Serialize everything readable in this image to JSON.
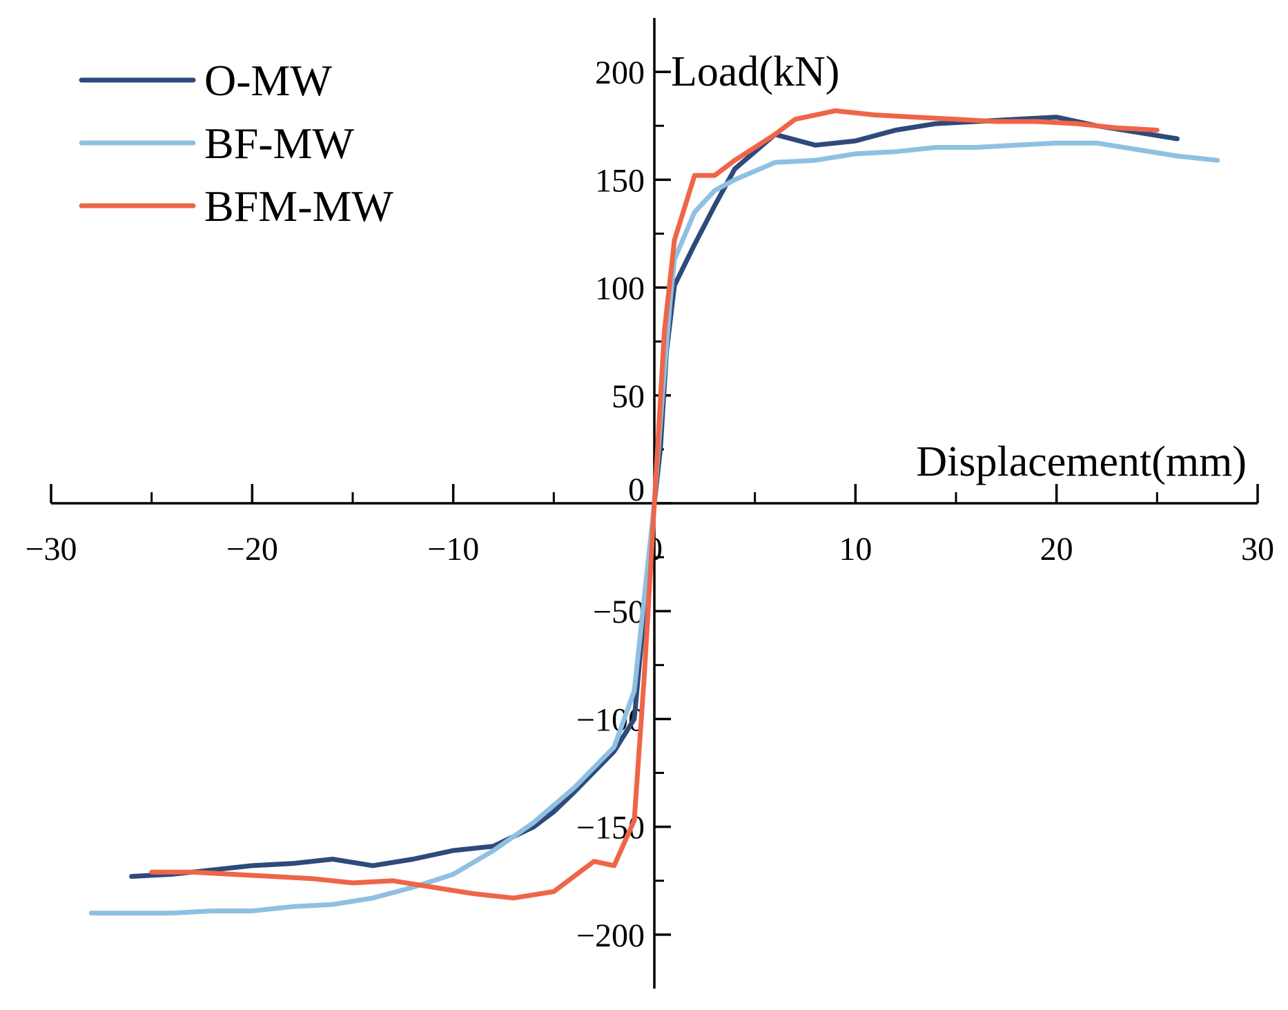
{
  "chart_data": {
    "type": "line",
    "title": "",
    "xlabel": "Displacement(mm)",
    "ylabel": "Load(kN)",
    "xlim": [
      -30,
      30
    ],
    "ylim": [
      -225,
      225
    ],
    "x_ticks": [
      -30,
      -20,
      -10,
      0,
      10,
      20,
      30
    ],
    "x_tick_labels": [
      "−30",
      "−20",
      "−10",
      "0",
      "10",
      "20",
      "30"
    ],
    "y_ticks": [
      -200,
      -150,
      -100,
      -50,
      0,
      50,
      100,
      150,
      200
    ],
    "y_tick_labels": [
      "−200",
      "−150",
      "−100",
      "−50",
      "0",
      "50",
      "100",
      "150",
      "200"
    ],
    "grid": false,
    "legend_position": "top-left",
    "series": [
      {
        "name": "O-MW",
        "color": "#2e4a7a",
        "x": [
          -26,
          -24,
          -22,
          -20,
          -18,
          -16,
          -14,
          -12,
          -10,
          -8,
          -6,
          -5,
          -4,
          -2,
          -1,
          0,
          0.3,
          0.6,
          1,
          2,
          3,
          4,
          6,
          8,
          10,
          12,
          14,
          16,
          18,
          20,
          22,
          24,
          26
        ],
        "y": [
          -173,
          -172,
          -170,
          -168,
          -167,
          -165,
          -168,
          -165,
          -161,
          -159,
          -150,
          -143,
          -134,
          -115,
          -100,
          0,
          25,
          70,
          101,
          120,
          138,
          155,
          171,
          166,
          168,
          173,
          176,
          177,
          178,
          179,
          175,
          172,
          169
        ]
      },
      {
        "name": "BF-MW",
        "color": "#8fc0e2",
        "x": [
          -28,
          -26,
          -24,
          -22,
          -20,
          -18,
          -16,
          -14,
          -12,
          -10,
          -8,
          -6,
          -4,
          -2,
          -1,
          0,
          0.4,
          0.8,
          1,
          2,
          3,
          4,
          6,
          8,
          10,
          12,
          14,
          16,
          18,
          20,
          22,
          24,
          26,
          28
        ],
        "y": [
          -190,
          -190,
          -190,
          -189,
          -189,
          -187,
          -186,
          -183,
          -178,
          -172,
          -161,
          -148,
          -132,
          -113,
          -87,
          0,
          50,
          95,
          113,
          135,
          145,
          150,
          158,
          159,
          162,
          163,
          165,
          165,
          166,
          167,
          167,
          164,
          161,
          159
        ]
      },
      {
        "name": "BFM-MW",
        "color": "#ef6548",
        "x": [
          -25,
          -23,
          -21,
          -19,
          -17,
          -15,
          -13,
          -11,
          -9,
          -7,
          -5,
          -3,
          -2,
          -1,
          -0.5,
          0,
          0.5,
          1,
          2,
          3,
          4,
          5,
          6,
          7,
          9,
          11,
          13,
          15,
          17,
          19,
          21,
          23,
          25
        ],
        "y": [
          -171,
          -171,
          -172,
          -173,
          -174,
          -176,
          -175,
          -178,
          -181,
          -183,
          -180,
          -166,
          -168,
          -147,
          -80,
          0,
          80,
          122,
          152,
          152,
          159,
          165,
          171,
          178,
          182,
          180,
          179,
          178,
          177,
          177,
          176,
          174,
          173
        ]
      }
    ]
  }
}
